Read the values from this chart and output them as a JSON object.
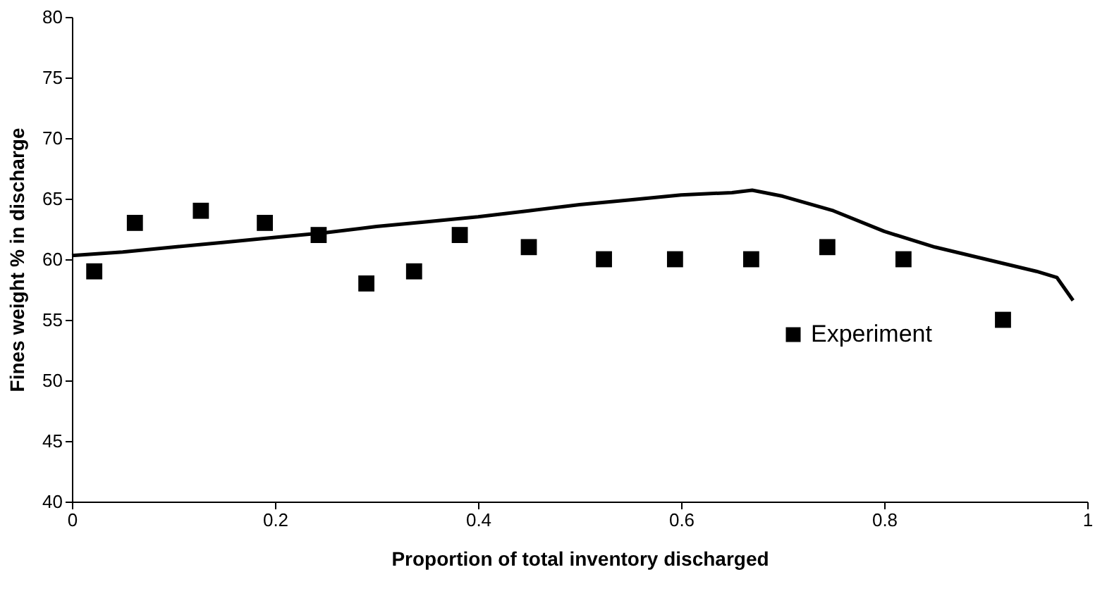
{
  "chart_data": {
    "type": "scatter",
    "xlabel": "Proportion of total inventory discharged",
    "ylabel": "Fines weight % in discharge",
    "xlim": [
      0,
      1
    ],
    "xticks": [
      0,
      0.2,
      0.4,
      0.6,
      0.8,
      1
    ],
    "ylim": [
      40,
      80
    ],
    "yticks": [
      40,
      45,
      50,
      55,
      60,
      65,
      70,
      75,
      80
    ],
    "grid": false,
    "legend": "bottom right",
    "series": [
      {
        "type": "line",
        "color": "#000000",
        "x": [
          0,
          0.05,
          0.1,
          0.15,
          0.2,
          0.25,
          0.3,
          0.35,
          0.4,
          0.45,
          0.5,
          0.55,
          0.6,
          0.65,
          0.67,
          0.7,
          0.75,
          0.8,
          0.85,
          0.9,
          0.95,
          0.97,
          0.986
        ],
        "values": [
          60.3,
          60.6,
          61,
          61.4,
          61.8,
          62.2,
          62.7,
          63.1,
          63.5,
          64,
          64.5,
          64.9,
          65.3,
          65.5,
          65.7,
          65.2,
          64,
          62.3,
          61,
          60,
          59,
          58.5,
          56.6
        ]
      },
      {
        "name": "Experiment",
        "color": "#000000",
        "marker": "square",
        "x": [
          0.022,
          0.062,
          0.127,
          0.19,
          0.243,
          0.29,
          0.337,
          0.382,
          0.45,
          0.524,
          0.594,
          0.669,
          0.744,
          0.819,
          0.917
        ],
        "values": [
          59,
          63,
          64,
          63,
          62,
          58,
          59,
          62,
          61,
          60,
          60,
          60,
          61,
          60,
          55
        ]
      }
    ]
  }
}
